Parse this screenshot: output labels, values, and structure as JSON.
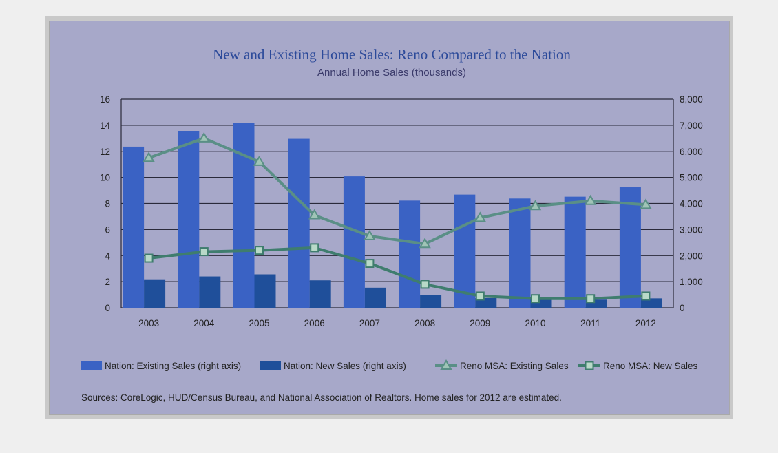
{
  "chart_data": {
    "type": "bar",
    "title": "New and Existing Home Sales: Reno Compared to the Nation",
    "subtitle": "Annual Home Sales (thousands)",
    "categories": [
      "2003",
      "2004",
      "2005",
      "2006",
      "2007",
      "2008",
      "2009",
      "2010",
      "2011",
      "2012"
    ],
    "y_left": {
      "ylim": [
        0,
        16
      ],
      "ticks": [
        "0",
        "2",
        "4",
        "6",
        "8",
        "10",
        "12",
        "14",
        "16"
      ]
    },
    "y_right": {
      "ylim": [
        0,
        8000
      ],
      "ticks": [
        "0",
        "1,000",
        "2,000",
        "3,000",
        "4,000",
        "5,000",
        "6,000",
        "7,000",
        "8,000"
      ]
    },
    "series": [
      {
        "name": "Nation: Existing Sales (right axis)",
        "type": "bar",
        "axis": "right",
        "color": "#3a62c4",
        "values": [
          6180,
          6780,
          7080,
          6480,
          5040,
          4110,
          4340,
          4190,
          4260,
          4620
        ]
      },
      {
        "name": "Nation: New Sales (right axis)",
        "type": "bar",
        "axis": "right",
        "color": "#1f4f9a",
        "values": [
          1090,
          1200,
          1280,
          1050,
          770,
          490,
          370,
          320,
          310,
          360
        ]
      },
      {
        "name": "Reno MSA: Existing Sales",
        "type": "line",
        "axis": "left",
        "marker": "triangle",
        "color": "#5a8f86",
        "values": [
          11.5,
          13.0,
          11.2,
          7.1,
          5.5,
          4.9,
          6.9,
          7.8,
          8.2,
          7.9
        ]
      },
      {
        "name": "Reno MSA: New Sales",
        "type": "line",
        "axis": "left",
        "marker": "square",
        "color": "#3f7d6e",
        "values": [
          3.8,
          4.3,
          4.4,
          4.6,
          3.4,
          1.8,
          0.9,
          0.7,
          0.7,
          0.9
        ]
      }
    ],
    "grid": true,
    "legend_position": "bottom",
    "source": "Sources: CoreLogic, HUD/Census  Bureau, and National Association of Realtors. Home sales for 2012 are estimated."
  }
}
